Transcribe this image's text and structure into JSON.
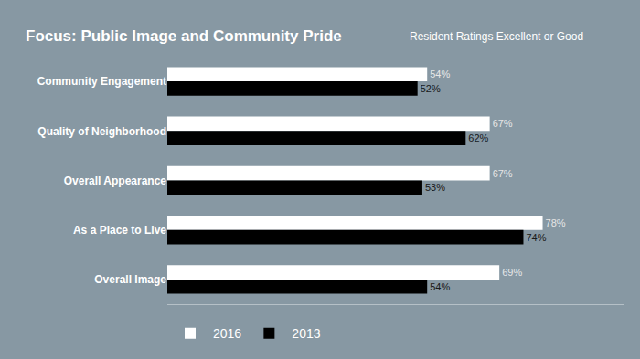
{
  "chart_data": {
    "type": "bar",
    "orientation": "horizontal",
    "title": "Focus: Public Image and Community Pride",
    "subtitle": "Resident Ratings Excellent or Good",
    "categories": [
      "Community Engagement",
      "Quality of Neighborhood",
      "Overall Appearance",
      "As a Place to Live",
      "Overall Image"
    ],
    "series": [
      {
        "name": "2016",
        "color": "#ffffff",
        "values": [
          54,
          67,
          67,
          78,
          69
        ],
        "value_labels": [
          "54%",
          "67%",
          "67%",
          "78%",
          "69%"
        ]
      },
      {
        "name": "2013",
        "color": "#000000",
        "values": [
          52,
          62,
          53,
          74,
          54
        ],
        "value_labels": [
          "52%",
          "62%",
          "53%",
          "74%",
          "54%"
        ]
      }
    ],
    "xlim": [
      0,
      95
    ],
    "data_labels": true,
    "tick_labels": "y",
    "grid": false,
    "legend": "bottom left"
  }
}
